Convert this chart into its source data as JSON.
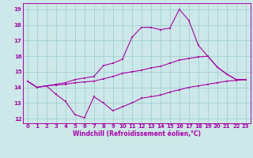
{
  "xlabel": "Windchill (Refroidissement éolien,°C)",
  "bg_color": "#cce8e8",
  "line_color": "#aa00aa",
  "grid_color": "#99cccc",
  "spine_color": "#aa00aa",
  "xlim": [
    -0.5,
    23.5
  ],
  "ylim": [
    11.7,
    19.4
  ],
  "yticks": [
    12,
    13,
    14,
    15,
    16,
    17,
    18,
    19
  ],
  "xticks": [
    0,
    1,
    2,
    3,
    4,
    5,
    6,
    7,
    8,
    9,
    10,
    11,
    12,
    13,
    14,
    15,
    16,
    17,
    18,
    19,
    20,
    21,
    22,
    23
  ],
  "line1_x": [
    0,
    1,
    2,
    3,
    4,
    5,
    6,
    7,
    8,
    9,
    10,
    11,
    12,
    13,
    14,
    15,
    16,
    17,
    18,
    19,
    20,
    21,
    22,
    23
  ],
  "line1_y": [
    14.4,
    14.0,
    14.1,
    13.55,
    13.1,
    12.25,
    12.05,
    13.4,
    13.0,
    12.5,
    12.75,
    13.0,
    13.3,
    13.4,
    13.5,
    13.7,
    13.85,
    14.0,
    14.1,
    14.2,
    14.3,
    14.4,
    14.45,
    14.5
  ],
  "line2_x": [
    0,
    1,
    2,
    3,
    4,
    5,
    6,
    7,
    8,
    9,
    10,
    11,
    12,
    13,
    14,
    15,
    16,
    17,
    18,
    19,
    20,
    21,
    22,
    23
  ],
  "line2_y": [
    14.4,
    14.0,
    14.1,
    14.15,
    14.2,
    14.3,
    14.35,
    14.4,
    14.55,
    14.7,
    14.9,
    15.0,
    15.1,
    15.25,
    15.35,
    15.55,
    15.75,
    15.85,
    15.95,
    16.0,
    15.3,
    14.85,
    14.5,
    14.5
  ],
  "line3_x": [
    0,
    1,
    2,
    3,
    4,
    5,
    6,
    7,
    8,
    9,
    10,
    11,
    12,
    13,
    14,
    15,
    16,
    17,
    18,
    19,
    20,
    21,
    22,
    23
  ],
  "line3_y": [
    14.4,
    14.0,
    14.1,
    14.2,
    14.3,
    14.5,
    14.6,
    14.7,
    15.4,
    15.55,
    15.8,
    17.2,
    17.85,
    17.85,
    17.7,
    17.8,
    19.0,
    18.3,
    16.7,
    16.0,
    15.3,
    14.85,
    14.5,
    14.5
  ],
  "xlabel_fontsize": 5.5,
  "tick_fontsize": 5.0,
  "lw": 0.8,
  "ms": 1.8
}
